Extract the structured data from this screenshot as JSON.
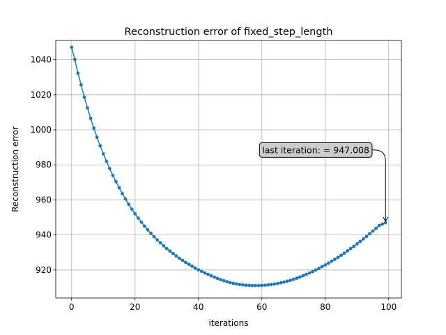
{
  "chart_data": {
    "type": "line",
    "title": "Reconstruction error of fixed_step_length",
    "xlabel": "iterations",
    "ylabel": "Reconstruction error",
    "xlim": [
      -5,
      104
    ],
    "ylim": [
      904,
      1051
    ],
    "xticks": [
      0,
      20,
      40,
      60,
      80,
      100
    ],
    "yticks": [
      920,
      940,
      960,
      980,
      1000,
      1020,
      1040
    ],
    "grid": true,
    "series": [
      {
        "color": "#1f77b4",
        "marker": "circle",
        "x": [
          0,
          1,
          2,
          3,
          4,
          5,
          6,
          7,
          8,
          9,
          10,
          11,
          12,
          13,
          14,
          15,
          16,
          17,
          18,
          19,
          20,
          21,
          22,
          23,
          24,
          25,
          26,
          27,
          28,
          29,
          30,
          31,
          32,
          33,
          34,
          35,
          36,
          37,
          38,
          39,
          40,
          41,
          42,
          43,
          44,
          45,
          46,
          47,
          48,
          49,
          50,
          51,
          52,
          53,
          54,
          55,
          56,
          57,
          58,
          59,
          60,
          61,
          62,
          63,
          64,
          65,
          66,
          67,
          68,
          69,
          70,
          71,
          72,
          73,
          74,
          75,
          76,
          77,
          78,
          79,
          80,
          81,
          82,
          83,
          84,
          85,
          86,
          87,
          88,
          89,
          90,
          91,
          92,
          93,
          94,
          95,
          96,
          97,
          98,
          99
        ],
        "values": [
          1047.1,
          1040.2,
          1032.3,
          1025.7,
          1018.6,
          1012.5,
          1006.5,
          1001.0,
          995.7,
          990.9,
          986.3,
          982.0,
          977.9,
          974.0,
          970.4,
          966.9,
          963.6,
          960.5,
          957.5,
          954.7,
          952.1,
          949.6,
          947.3,
          945.0,
          942.9,
          940.9,
          939.0,
          937.2,
          935.5,
          933.8,
          932.2,
          930.8,
          929.4,
          928.0,
          926.7,
          925.5,
          924.3,
          923.2,
          922.1,
          921.1,
          920.1,
          919.2,
          918.3,
          917.5,
          916.7,
          915.9,
          915.2,
          914.5,
          913.9,
          913.3,
          912.8,
          912.4,
          912.0,
          911.7,
          911.5,
          911.3,
          911.2,
          911.1,
          911.1,
          911.1,
          911.2,
          911.3,
          911.5,
          911.7,
          912.0,
          912.3,
          912.7,
          913.1,
          913.6,
          914.1,
          914.7,
          915.3,
          916.0,
          916.7,
          917.5,
          918.3,
          919.1,
          920.0,
          920.9,
          921.9,
          922.9,
          923.9,
          925.0,
          926.1,
          927.2,
          928.4,
          929.6,
          930.9,
          932.2,
          933.5,
          934.9,
          936.3,
          937.7,
          939.2,
          940.7,
          942.2,
          943.8,
          945.4,
          946.2,
          947.008
        ]
      }
    ],
    "annotation": {
      "text": "last iteration: = 947.008",
      "x": 99,
      "y": 947.008,
      "text_x": 77,
      "text_y": 988.5
    }
  }
}
